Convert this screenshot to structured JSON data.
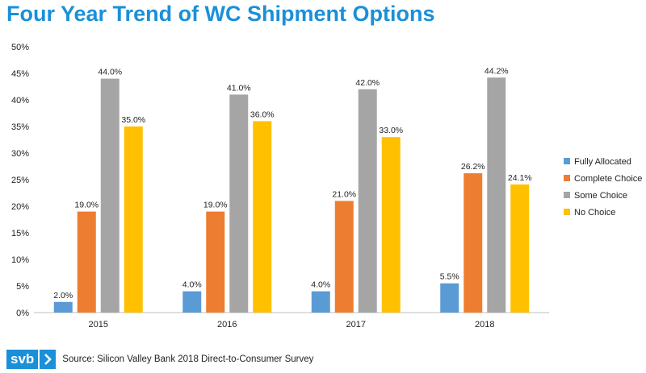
{
  "title": "Four Year Trend of WC Shipment Options",
  "source": "Source: Silicon Valley Bank 2018 Direct-to-Consumer Survey",
  "logo": {
    "text": "svb",
    "icon": "chevron-right-icon"
  },
  "colors": {
    "title": "#1a90d8",
    "logo": "#1a90d8"
  },
  "chart_data": {
    "type": "bar",
    "categories": [
      "2015",
      "2016",
      "2017",
      "2018"
    ],
    "series": [
      {
        "name": "Fully Allocated",
        "color": "#5b9bd5",
        "values": [
          2.0,
          4.0,
          4.0,
          5.5
        ],
        "labels": [
          "2.0%",
          "4.0%",
          "4.0%",
          "5.5%"
        ]
      },
      {
        "name": "Complete Choice",
        "color": "#ed7d31",
        "values": [
          19.0,
          19.0,
          21.0,
          26.2
        ],
        "labels": [
          "19.0%",
          "19.0%",
          "21.0%",
          "26.2%"
        ]
      },
      {
        "name": "Some Choice",
        "color": "#a5a5a5",
        "values": [
          44.0,
          41.0,
          42.0,
          44.2
        ],
        "labels": [
          "44.0%",
          "41.0%",
          "42.0%",
          "44.2%"
        ]
      },
      {
        "name": "No Choice",
        "color": "#ffc000",
        "values": [
          35.0,
          36.0,
          33.0,
          24.1
        ],
        "labels": [
          "35.0%",
          "36.0%",
          "33.0%",
          "24.1%"
        ]
      }
    ],
    "ylim": [
      0,
      50
    ],
    "yticks": [
      "0%",
      "5%",
      "10%",
      "15%",
      "20%",
      "25%",
      "30%",
      "35%",
      "40%",
      "45%",
      "50%"
    ],
    "grid": false,
    "legend_position": "right"
  }
}
